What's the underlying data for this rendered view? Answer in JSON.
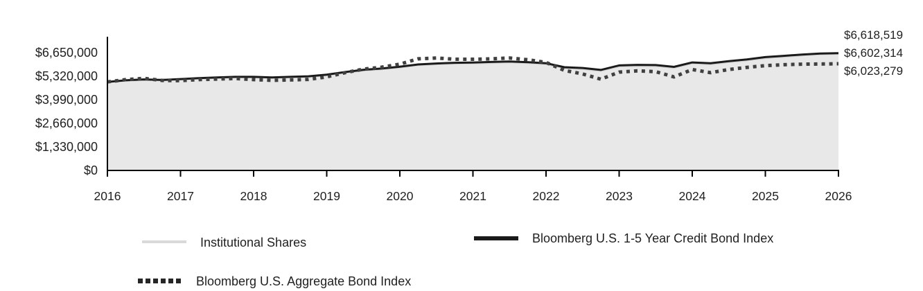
{
  "colors": {
    "institutional_line": "#d2d2d2",
    "institutional_fill": "#e8e8e8",
    "credit_index_line": "#1a1a1a",
    "aggregate_index_line": "#404040",
    "axis": "#000000"
  },
  "chart_data": {
    "type": "area",
    "title": "",
    "xlabel": "",
    "ylabel": "",
    "x_tick_labels": [
      "2016",
      "2017",
      "2018",
      "2019",
      "2020",
      "2021",
      "2022",
      "2023",
      "2024",
      "2025",
      "2026"
    ],
    "x_range": [
      2016,
      2026
    ],
    "y_tick_values": [
      0,
      1330000,
      2660000,
      3990000,
      5320000,
      6650000
    ],
    "y_tick_labels": [
      "$0",
      "$1,330,000",
      "$2,660,000",
      "$3,990,000",
      "$5,320,000",
      "$6,650,000"
    ],
    "ylim": [
      0,
      6650000
    ],
    "grid": false,
    "legend_position": "bottom",
    "x": [
      2016.0,
      2016.25,
      2016.5,
      2016.75,
      2017.0,
      2017.25,
      2017.5,
      2017.75,
      2018.0,
      2018.25,
      2018.5,
      2018.75,
      2019.0,
      2019.25,
      2019.5,
      2019.75,
      2020.0,
      2020.25,
      2020.5,
      2020.75,
      2021.0,
      2021.25,
      2021.5,
      2021.75,
      2022.0,
      2022.25,
      2022.5,
      2022.75,
      2023.0,
      2023.25,
      2023.5,
      2023.75,
      2024.0,
      2024.25,
      2024.5,
      2024.75,
      2025.0,
      2025.25,
      2025.5,
      2025.75,
      2026.0
    ],
    "series": [
      {
        "name": "Institutional Shares",
        "style": "solid",
        "color": "#d2d2d2",
        "width": 3,
        "fill": "#e8e8e8",
        "end_label": "$6,602,314",
        "end_value": 6602314,
        "values": [
          5000000,
          5070000,
          5120000,
          5090000,
          5140000,
          5190000,
          5230000,
          5260000,
          5260000,
          5230000,
          5260000,
          5290000,
          5380000,
          5520000,
          5650000,
          5720000,
          5820000,
          5950000,
          6000000,
          6040000,
          6050000,
          6080000,
          6110000,
          6070000,
          6010000,
          5780000,
          5730000,
          5620000,
          5880000,
          5910000,
          5900000,
          5800000,
          6050000,
          6000000,
          6120000,
          6220000,
          6350000,
          6420000,
          6500000,
          6560000,
          6602314
        ]
      },
      {
        "name": "Bloomberg U.S. 1-5 Year Credit Bond Index",
        "style": "solid",
        "color": "#1a1a1a",
        "width": 3,
        "fill": null,
        "end_label": "$6,618,519",
        "end_value": 6618519,
        "values": [
          5000000,
          5090000,
          5140000,
          5110000,
          5160000,
          5210000,
          5255000,
          5285000,
          5285000,
          5255000,
          5285000,
          5315000,
          5410000,
          5555000,
          5685000,
          5755000,
          5855000,
          5985000,
          6040000,
          6080000,
          6095000,
          6125000,
          6155000,
          6115000,
          6055000,
          5830000,
          5785000,
          5675000,
          5930000,
          5960000,
          5950000,
          5850000,
          6100000,
          6050000,
          6170000,
          6270000,
          6400000,
          6470000,
          6545000,
          6600000,
          6618519
        ]
      },
      {
        "name": "Bloomberg U.S. Aggregate Bond Index",
        "style": "dotted",
        "color": "#404040",
        "width": 5,
        "fill": null,
        "end_label": "$6,023,279",
        "end_value": 6023279,
        "values": [
          5000000,
          5130000,
          5200000,
          5080000,
          5070000,
          5130000,
          5160000,
          5190000,
          5130000,
          5090000,
          5110000,
          5140000,
          5280000,
          5520000,
          5720000,
          5830000,
          6000000,
          6300000,
          6350000,
          6280000,
          6280000,
          6300000,
          6350000,
          6250000,
          6100000,
          5650000,
          5450000,
          5150000,
          5550000,
          5620000,
          5580000,
          5280000,
          5700000,
          5520000,
          5700000,
          5820000,
          5920000,
          5970000,
          6000000,
          6010000,
          6023279
        ]
      }
    ],
    "end_labels_top_to_bottom": [
      "$6,618,519",
      "$6,602,314",
      "$6,023,279"
    ]
  },
  "legend": {
    "items": [
      {
        "label": "Institutional Shares"
      },
      {
        "label": "Bloomberg U.S. 1-5 Year Credit Bond Index"
      },
      {
        "label": "Bloomberg U.S. Aggregate Bond Index"
      }
    ]
  }
}
